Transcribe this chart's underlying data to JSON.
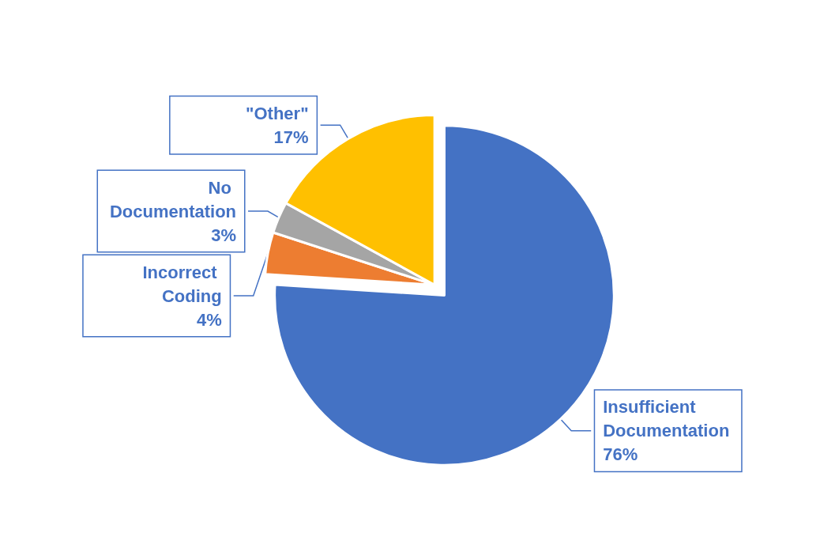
{
  "chart_data": {
    "type": "pie",
    "categories": [
      "Insufficient Documentation",
      "Incorrect Coding",
      "No Documentation",
      "\"Other\""
    ],
    "values": [
      76,
      4,
      3,
      17
    ],
    "value_labels": [
      "76%",
      "4%",
      "3%",
      "17%"
    ],
    "colors": [
      "#4472c4",
      "#ed7d31",
      "#a5a5a5",
      "#ffc000"
    ],
    "legend": false
  }
}
